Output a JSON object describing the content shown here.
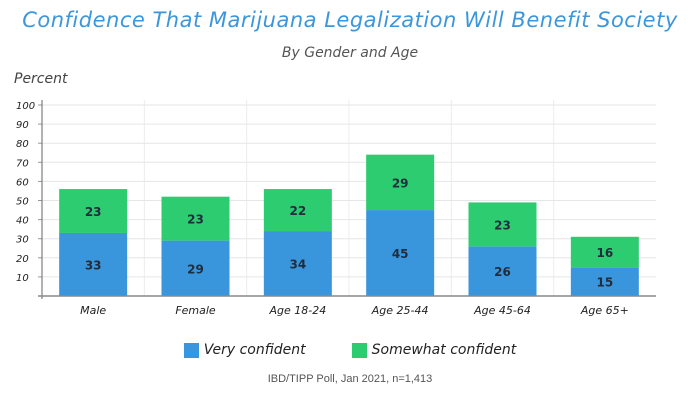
{
  "chart_data": {
    "type": "bar",
    "stacked": true,
    "title": "Confidence That Marijuana Legalization Will Benefit Society",
    "subtitle": "By Gender and Age",
    "ylabel": "Percent",
    "xlabel": "",
    "ylim": [
      0,
      100
    ],
    "yticks": [
      10,
      20,
      30,
      40,
      50,
      60,
      70,
      80,
      90,
      100
    ],
    "grid": true,
    "legend_position": "bottom",
    "categories": [
      "Male",
      "Female",
      "Age 18-24",
      "Age 25-44",
      "Age 45-64",
      "Age 65+"
    ],
    "series": [
      {
        "name": "Very confident",
        "color": "#3a96dc",
        "values": [
          33,
          29,
          34,
          45,
          26,
          15
        ]
      },
      {
        "name": "Somewhat confident",
        "color": "#2ecc71",
        "values": [
          23,
          23,
          22,
          29,
          23,
          16
        ]
      }
    ],
    "source": "IBD/TIPP Poll, Jan 2021, n=1,413"
  }
}
